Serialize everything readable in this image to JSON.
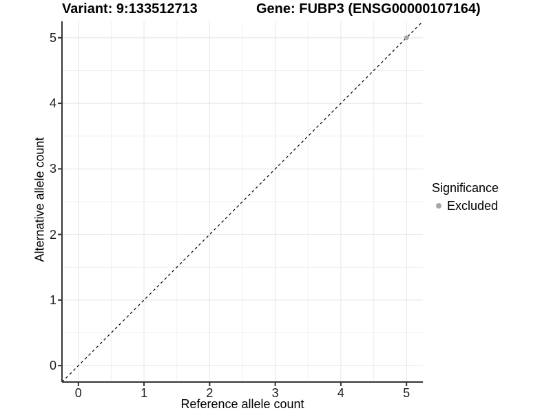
{
  "chart_data": {
    "type": "scatter",
    "title_left": "Variant: 9:133512713",
    "title_right": "Gene: FUBP3 (ENSG00000107164)",
    "xlabel": "Reference allele count",
    "ylabel": "Alternative allele count",
    "xlim": [
      -0.25,
      5.25
    ],
    "ylim": [
      -0.25,
      5.25
    ],
    "x_ticks": [
      0,
      1,
      2,
      3,
      4,
      5
    ],
    "y_ticks": [
      0,
      1,
      2,
      3,
      4,
      5
    ],
    "grid": {
      "major": true,
      "minor": true,
      "major_color": "#e4e4e4",
      "minor_color": "#f0f0f0"
    },
    "reference_line": {
      "style": "dashed",
      "slope": 1,
      "intercept": 0,
      "color": "#000000",
      "width": 1.2,
      "dash": "4 3.8"
    },
    "series": [
      {
        "name": "Excluded",
        "color": "#a8a8a8",
        "points": [
          [
            5,
            5
          ]
        ]
      }
    ],
    "legend": {
      "title": "Significance",
      "position": "right"
    },
    "axis_line_color": "#333333",
    "tick_color": "#333333",
    "background": "#ffffff"
  }
}
